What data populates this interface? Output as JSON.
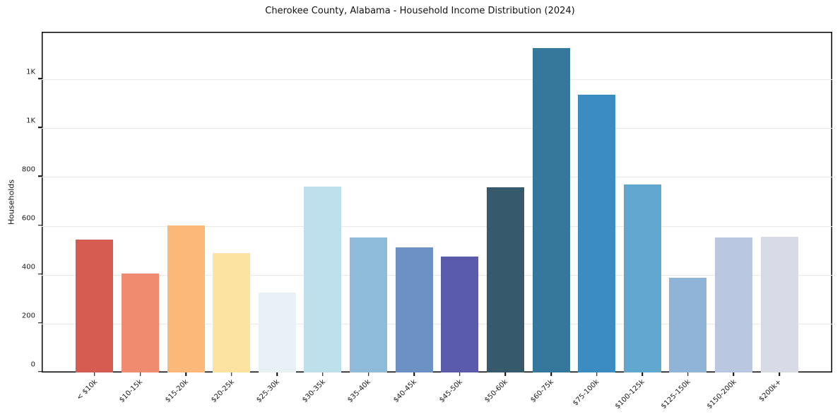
{
  "chart_data": {
    "type": "bar",
    "title": "Cherokee County, Alabama - Household Income Distribution (2024)",
    "xlabel": "",
    "ylabel": "Households",
    "categories": [
      "< $10k",
      "$10-15k",
      "$15-20k",
      "$20-25k",
      "$25-30k",
      "$30-35k",
      "$35-40k",
      "$40-45k",
      "$45-50k",
      "$50-60k",
      "$60-75k",
      "$75-100k",
      "$100-125k",
      "$125-150k",
      "$150-200k",
      "$200k+"
    ],
    "values": [
      545,
      406,
      603,
      490,
      327,
      762,
      554,
      513,
      475,
      759,
      1330,
      1139,
      771,
      388,
      554,
      556
    ],
    "bar_colors": [
      "#d65c52",
      "#f18b6f",
      "#fbb878",
      "#fce3a1",
      "#e7f1f6",
      "#bee0ed",
      "#8fbbdb",
      "#6b91c5",
      "#5a5cab",
      "#36596c",
      "#36789b",
      "#3a8cc1",
      "#61a7d0",
      "#8fb4d8",
      "#b9c7e0",
      "#d8dae8"
    ],
    "ylim": [
      0,
      1397
    ],
    "yticks": {
      "values": [
        0,
        200,
        400,
        600,
        800,
        1000,
        1200
      ],
      "labels": [
        "0",
        "200",
        "400",
        "600",
        "800",
        "1K",
        "1K"
      ]
    },
    "grid": "horizontal",
    "grid_color": "#e9e9e9",
    "axis_color": "#000000",
    "text_color": "#1a1a1a",
    "background": "#ffffff",
    "legend": "none",
    "x_tick_rotation_deg": 45
  }
}
